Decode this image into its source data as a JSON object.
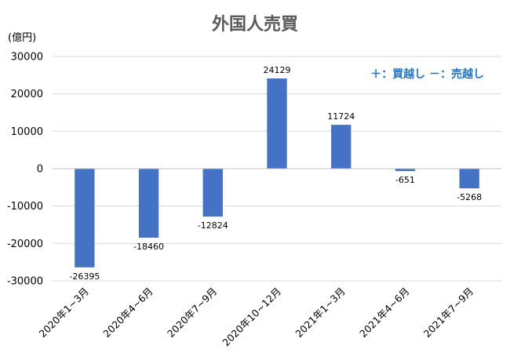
{
  "chart_data": {
    "type": "bar",
    "title": "外国人売買",
    "unit_label": "(億円)",
    "annotation": "＋：買越し －：売越し",
    "categories": [
      "2020年1~3月",
      "2020年4~6月",
      "2020年7~9月",
      "2020年10~12月",
      "2021年1~3月",
      "2021年4~6月",
      "2021年7~9月"
    ],
    "values": [
      -26395,
      -18460,
      -12824,
      24129,
      11724,
      -651,
      -5268
    ],
    "data_labels": [
      "-26395",
      "-18460",
      "-12824",
      "24129",
      "11724",
      "-651",
      "-5268"
    ],
    "yticks": [
      30000,
      20000,
      10000,
      0,
      -10000,
      -20000,
      -30000
    ],
    "ytick_labels": [
      "30000",
      "20000",
      "10000",
      "0",
      "-10000",
      "-20000",
      "-30000"
    ],
    "ylim": [
      -30000,
      30000
    ],
    "grid": true,
    "bar_color": "#4472c4",
    "annotation_color": "#1f77c4"
  }
}
